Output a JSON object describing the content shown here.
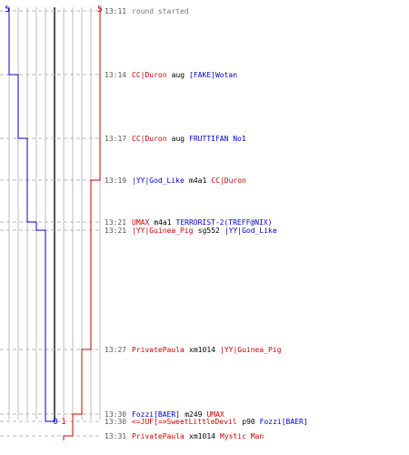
{
  "chart_data": {
    "type": "line",
    "title": "",
    "xlabel": "",
    "ylabel": "",
    "x_ticks": [
      "5",
      "0",
      "1",
      "5"
    ],
    "teams": [
      {
        "name": "blue",
        "color": "#0000cc"
      },
      {
        "name": "red",
        "color": "#cc0000"
      }
    ],
    "events": [
      {
        "time": "13:11",
        "parts": [
          {
            "text": "round started",
            "team": "neutral"
          }
        ],
        "blue_alive": 5,
        "red_alive": 5
      },
      {
        "time": "13:14",
        "parts": [
          {
            "text": "CC|Duron",
            "team": "red"
          },
          {
            "text": "aug",
            "team": "weapon"
          },
          {
            "text": "[FAKE]Wotan",
            "team": "blue"
          }
        ],
        "blue_alive": 4,
        "red_alive": 5
      },
      {
        "time": "13:17",
        "parts": [
          {
            "text": "CC|Duron",
            "team": "red"
          },
          {
            "text": "aug",
            "team": "weapon"
          },
          {
            "text": "FRUTTIFAN No1",
            "team": "blue"
          }
        ],
        "blue_alive": 3,
        "red_alive": 5
      },
      {
        "time": "13:19",
        "parts": [
          {
            "text": "|YY|God_Like",
            "team": "blue"
          },
          {
            "text": "m4a1",
            "team": "weapon"
          },
          {
            "text": "CC|Duron",
            "team": "red"
          }
        ],
        "blue_alive": 3,
        "red_alive": 4
      },
      {
        "time": "13:21",
        "parts": [
          {
            "text": "UMAX",
            "team": "red"
          },
          {
            "text": "m4a1",
            "team": "weapon"
          },
          {
            "text": "TERRORIST-2(TREFF@NIX)",
            "team": "blue"
          }
        ],
        "blue_alive": 2,
        "red_alive": 4
      },
      {
        "time": "13:21",
        "parts": [
          {
            "text": "|YY|Guinea_Pig",
            "team": "red"
          },
          {
            "text": "sg552",
            "team": "weapon"
          },
          {
            "text": "|YY|God_Like",
            "team": "blue"
          }
        ],
        "blue_alive": 1,
        "red_alive": 4
      },
      {
        "time": "13:27",
        "parts": [
          {
            "text": "PrivatePaula",
            "team": "red"
          },
          {
            "text": "xm1014",
            "team": "weapon"
          },
          {
            "text": "|YY|Guinea_Pig",
            "team": "red"
          }
        ],
        "blue_alive": 1,
        "red_alive": 3
      },
      {
        "time": "13:30",
        "parts": [
          {
            "text": "Fozzi[BAER]",
            "team": "blue"
          },
          {
            "text": "m249",
            "team": "weapon"
          },
          {
            "text": "UMAX",
            "team": "red"
          }
        ],
        "blue_alive": 1,
        "red_alive": 2
      },
      {
        "time": "13:30",
        "parts": [
          {
            "text": "<=JUF[=>SweetLittleDevil",
            "team": "red"
          },
          {
            "text": "p90",
            "team": "weapon"
          },
          {
            "text": "Fozzi[BAER]",
            "team": "blue"
          }
        ],
        "blue_alive": 0,
        "red_alive": 2
      },
      {
        "time": "13:31",
        "parts": [
          {
            "text": "PrivatePaula",
            "team": "red"
          },
          {
            "text": "xm1014",
            "team": "weapon"
          },
          {
            "text": "Mystic Man",
            "team": "red"
          }
        ],
        "blue_alive": 0,
        "red_alive": 1
      }
    ]
  },
  "colors": {
    "blue_team": "#0000cc",
    "red_team": "#cc0000",
    "time_text": "#555555",
    "neutral_text": "#777777",
    "weapon_text": "#000000",
    "grid": "#bdbdbd",
    "center_line": "#555555",
    "leader": "#b8b8b8"
  }
}
